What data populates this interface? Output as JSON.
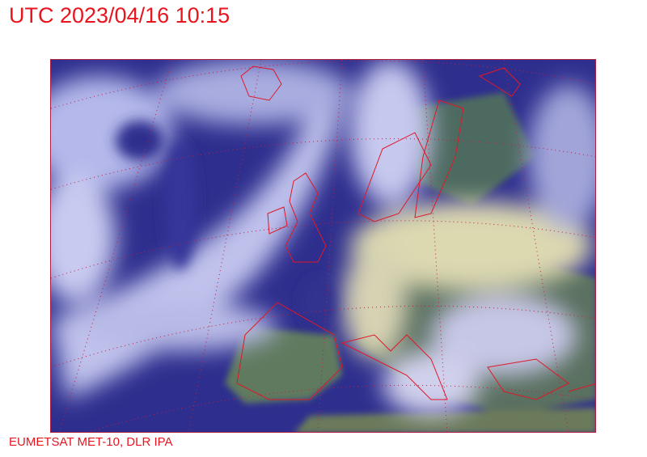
{
  "header": {
    "title": "UTC 2023/04/16 10:15"
  },
  "footer": {
    "credit": "EUMETSAT MET-10, DLR IPA"
  },
  "map": {
    "colors": {
      "ocean": "#2e2e8e",
      "cloud": "#c4c6ee",
      "high_cloud": "#dcd8b0",
      "land": "#5e7a5e",
      "coastline": "#e01828",
      "graticule": "#c02040"
    }
  }
}
